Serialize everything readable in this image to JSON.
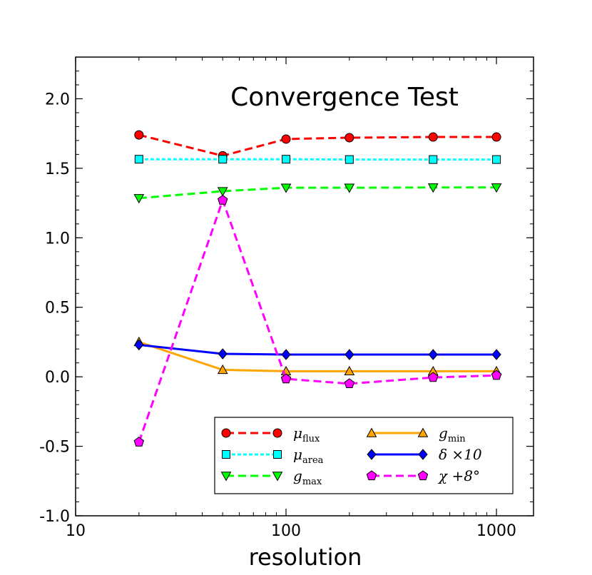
{
  "chart_data": {
    "type": "line",
    "title": "Convergence Test",
    "xlabel": "resolution",
    "ylabel": "",
    "xscale": "log",
    "xlim": [
      10,
      1500
    ],
    "ylim": [
      -1.0,
      2.3
    ],
    "x_ticks": [
      {
        "value": 10,
        "label": "10"
      },
      {
        "value": 100,
        "label": "100"
      },
      {
        "value": 1000,
        "label": "1000"
      }
    ],
    "y_ticks": [
      {
        "value": -1.0,
        "label": "-1.0"
      },
      {
        "value": -0.5,
        "label": "-0.5"
      },
      {
        "value": 0.0,
        "label": "0.0"
      },
      {
        "value": 0.5,
        "label": "0.5"
      },
      {
        "value": 1.0,
        "label": "1.0"
      },
      {
        "value": 1.5,
        "label": "1.5"
      },
      {
        "value": 2.0,
        "label": "2.0"
      }
    ],
    "x": [
      20,
      50,
      100,
      200,
      500,
      1000
    ],
    "legend_position": "lower-right",
    "series": [
      {
        "key": "mu_flux",
        "name": "μ",
        "sub": "flux",
        "color": "#ff0000",
        "marker": "circle",
        "dash": "dashed",
        "values": [
          1.74,
          1.59,
          1.71,
          1.72,
          1.725,
          1.725
        ]
      },
      {
        "key": "mu_area",
        "name": "μ",
        "sub": "area",
        "color": "#00ffff",
        "marker": "square",
        "dash": "dotted",
        "values": [
          1.565,
          1.565,
          1.565,
          1.563,
          1.563,
          1.563
        ]
      },
      {
        "key": "g_max",
        "name": "g",
        "sub": "max",
        "color": "#00ff00",
        "marker": "triangle-down",
        "dash": "dashed",
        "values": [
          1.285,
          1.335,
          1.36,
          1.36,
          1.362,
          1.362
        ]
      },
      {
        "key": "g_min",
        "name": "g",
        "sub": "min",
        "color": "#ffa500",
        "marker": "triangle-up",
        "dash": "solid",
        "values": [
          0.25,
          0.05,
          0.04,
          0.04,
          0.04,
          0.04
        ]
      },
      {
        "key": "delta",
        "name": "δ ×10",
        "sub": "",
        "color": "#0000ff",
        "marker": "diamond",
        "dash": "solid",
        "values": [
          0.23,
          0.165,
          0.16,
          0.16,
          0.16,
          0.16
        ]
      },
      {
        "key": "chi",
        "name": "χ +8°",
        "sub": "",
        "color": "#ff00ff",
        "marker": "pentagon",
        "dash": "dashed",
        "values": [
          -0.47,
          1.27,
          -0.015,
          -0.05,
          -0.005,
          0.01
        ]
      }
    ]
  }
}
